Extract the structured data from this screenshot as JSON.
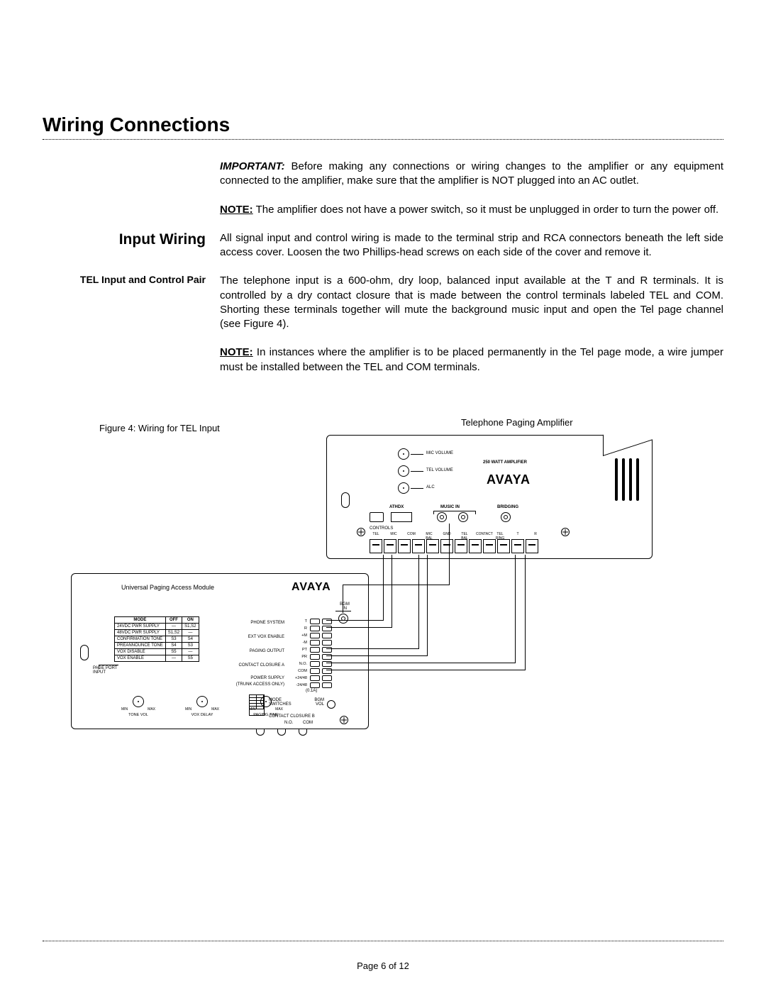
{
  "title": "Wiring Connections",
  "para_important": "Before making any connections or wiring changes to the amplifier or any equipment connected to the amplifier, make sure that the amplifier is NOT plugged into an AC outlet.",
  "important_label": "IMPORTANT:",
  "note1_label": "NOTE:",
  "note1": "The amplifier does not have a power switch, so it must be unplugged in order to turn the power off.",
  "input_wiring_head": "Input Wiring",
  "input_wiring_body": "All signal input and control wiring is made to the terminal strip and RCA connectors beneath the left side access cover.  Loosen the two Phillips-head screws on each side of the cover and remove it.",
  "tel_head": "TEL Input and Control Pair",
  "tel_body": "The telephone input is a 600-ohm, dry loop, balanced input available at the T and R terminals. It is controlled by a dry contact closure that is made between the control terminals labeled TEL and COM. Shorting these terminals together will mute the background music input and open the Tel page channel (see Figure 4).",
  "note2_label": "NOTE:",
  "note2": "In instances where the amplifier is to be placed permanently in the Tel page mode, a wire jumper must be installed between the TEL and COM terminals.",
  "fig_caption": "Figure 4: Wiring for TEL Input",
  "fig_right_label": "Telephone Paging Amplifier",
  "upam_label": "Universal Paging Access Module",
  "logo_text": "AVAYA",
  "amp": {
    "mic_vol": "MIC VOLUME",
    "tel_vol": "TEL VOLUME",
    "alc": "ALC",
    "watt": "250 WATT AMPLIFIER",
    "music_in": "MUSIC IN",
    "athdx": "ATHDX",
    "bridging": "BRIDGING",
    "controls": "CONTROLS",
    "terms": [
      "TEL",
      "MIC",
      "COM",
      "MIC BAL",
      "GND",
      "TEL BAL",
      "CONTACT",
      "TEL RING",
      "T",
      "R"
    ]
  },
  "upam": {
    "bgm_in": "BGM IN",
    "phone_system": "PHONE SYSTEM",
    "ext_vox": "EXT VOX ENABLE",
    "paging_output": "PAGING OUTPUT",
    "contact_a": "CONTACT CLOSURE A",
    "power_supply": "POWER SUPPLY",
    "trunk_note": "(TRUNK ACCESS ONLY)",
    "ports": [
      "T",
      "R",
      "+M",
      "-M",
      "PT",
      "PR",
      "N.O.",
      "COM",
      "+24/48",
      "-24/48"
    ],
    "amp_note": "(0.1A)",
    "mode_sw": "MODE SWITCHES",
    "bgm_vol": "BGM VOL",
    "contact_b": "CONTACT CLOSURE B",
    "no": "N.O.",
    "com": "COM",
    "knobs": [
      "TONE VOL",
      "VOX DELAY",
      "PAGING TIME"
    ],
    "min": "MIN",
    "max": "MAX",
    "page_port": "PAGE PORT INPUT",
    "table_head": [
      "MODE",
      "OFF",
      "ON"
    ],
    "table_rows": [
      [
        "24VDC PWR SUPPLY",
        "—",
        "S1,S2"
      ],
      [
        "48VDC PWR SUPPLY",
        "S1,S2",
        "—"
      ],
      [
        "CONFIRMATION TONE",
        "S3",
        "S4"
      ],
      [
        "PREANNOUNCE TONE",
        "S4",
        "S3"
      ],
      [
        "VOX DISABLE",
        "S5",
        "—"
      ],
      [
        "VOX ENABLE",
        "—",
        "S5"
      ]
    ]
  },
  "page_num": "Page 6 of 12"
}
